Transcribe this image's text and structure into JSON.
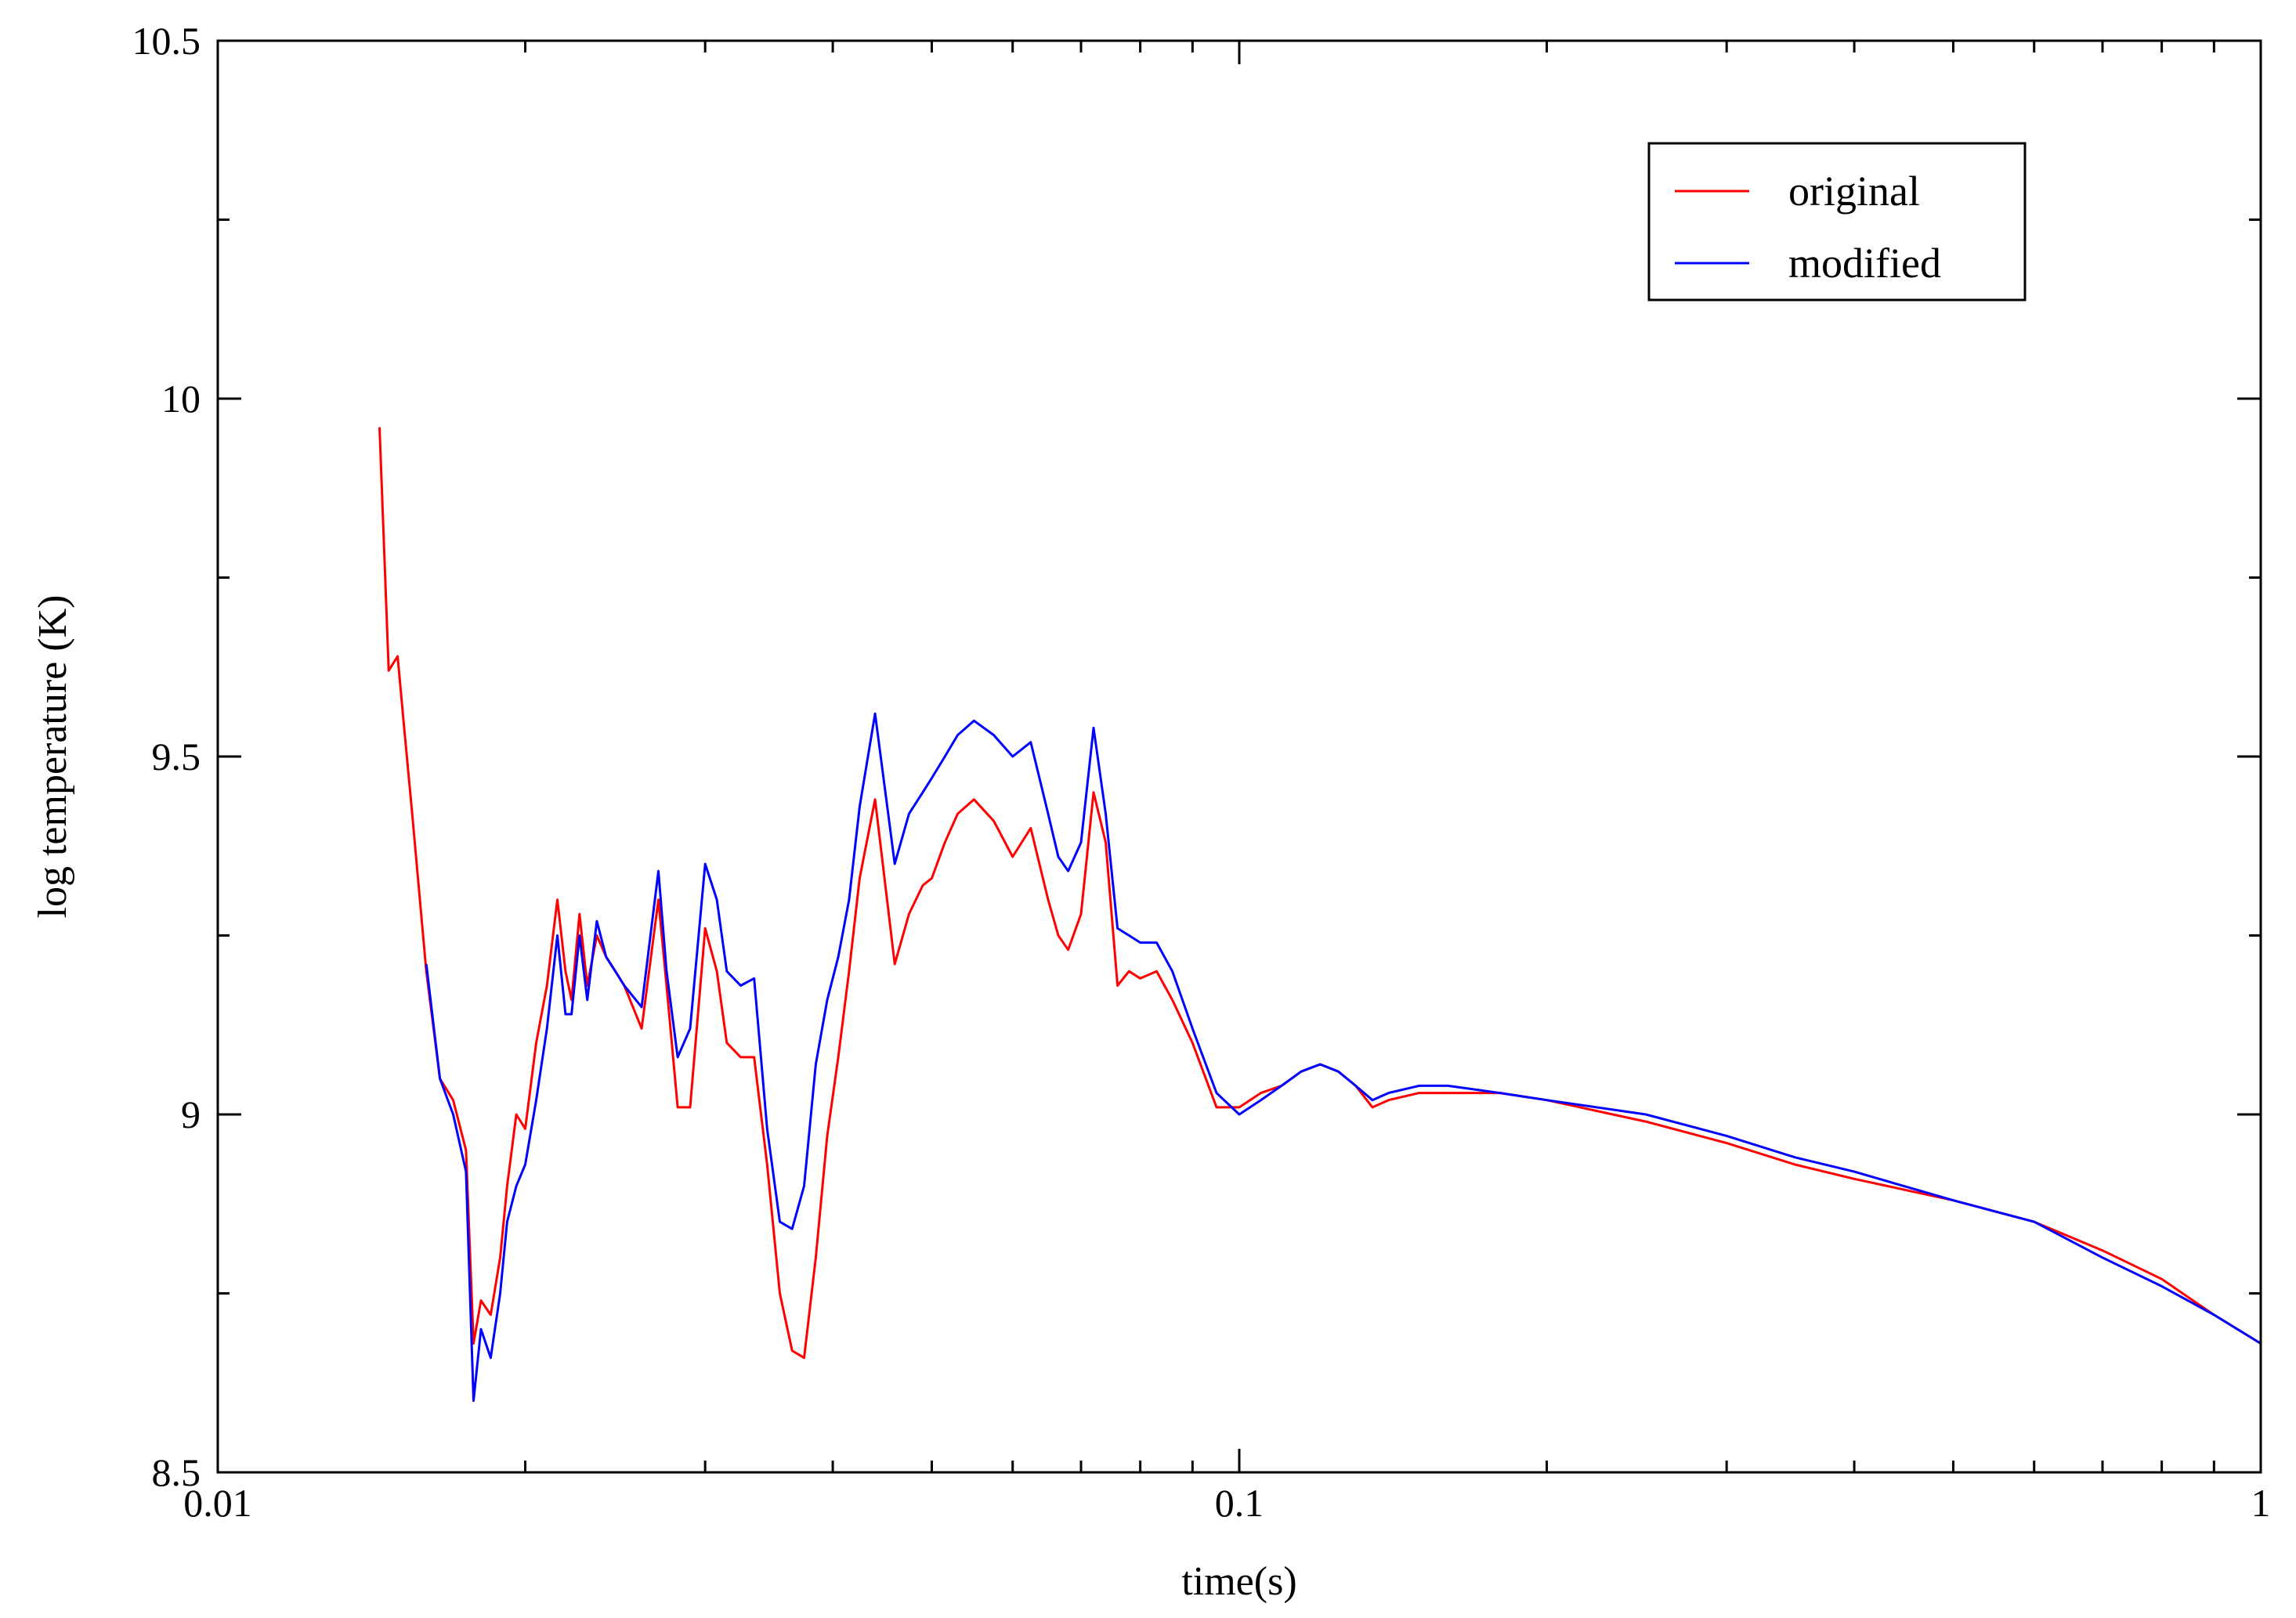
{
  "chart_data": {
    "type": "line",
    "title": "",
    "xlabel": "time(s)",
    "ylabel": "log temperature (K)",
    "x_scale": "log",
    "xlim": [
      0.01,
      1
    ],
    "ylim": [
      8.5,
      10.5
    ],
    "x_ticks": [
      {
        "value": 0.01,
        "label": "0.01"
      },
      {
        "value": 0.1,
        "label": "0.1"
      },
      {
        "value": 1,
        "label": "1"
      }
    ],
    "y_ticks": [
      {
        "value": 8.5,
        "label": "8.5"
      },
      {
        "value": 9,
        "label": "9"
      },
      {
        "value": 9.5,
        "label": "9.5"
      },
      {
        "value": 10,
        "label": "10"
      },
      {
        "value": 10.5,
        "label": "10.5"
      }
    ],
    "grid": false,
    "legend_position": "top-right",
    "series": [
      {
        "name": "original",
        "color": "#ff0000",
        "x": [
          0.0144,
          0.0147,
          0.015,
          0.0152,
          0.0155,
          0.016,
          0.0165,
          0.017,
          0.0175,
          0.0178,
          0.0181,
          0.0185,
          0.0189,
          0.0192,
          0.0196,
          0.02,
          0.0205,
          0.021,
          0.0215,
          0.0219,
          0.0222,
          0.0226,
          0.023,
          0.0235,
          0.024,
          0.0245,
          0.025,
          0.026,
          0.027,
          0.0275,
          0.0282,
          0.029,
          0.03,
          0.0308,
          0.0315,
          0.0325,
          0.0335,
          0.0345,
          0.0355,
          0.0365,
          0.0375,
          0.0385,
          0.0395,
          0.0405,
          0.0415,
          0.0425,
          0.044,
          0.046,
          0.0475,
          0.049,
          0.05,
          0.0515,
          0.053,
          0.055,
          0.0575,
          0.06,
          0.0625,
          0.065,
          0.0665,
          0.068,
          0.07,
          0.072,
          0.074,
          0.076,
          0.078,
          0.08,
          0.083,
          0.086,
          0.09,
          0.095,
          0.1,
          0.105,
          0.11,
          0.115,
          0.12,
          0.125,
          0.13,
          0.135,
          0.14,
          0.15,
          0.16,
          0.18,
          0.2,
          0.25,
          0.3,
          0.35,
          0.4,
          0.5,
          0.6,
          0.7,
          0.8,
          0.9,
          1.0
        ],
        "y": [
          9.96,
          9.62,
          9.64,
          9.55,
          9.42,
          9.2,
          9.05,
          9.02,
          8.95,
          8.68,
          8.74,
          8.72,
          8.8,
          8.9,
          9.0,
          8.98,
          9.1,
          9.18,
          9.3,
          9.2,
          9.16,
          9.28,
          9.18,
          9.25,
          9.22,
          9.2,
          9.18,
          9.12,
          9.3,
          9.18,
          9.01,
          9.01,
          9.26,
          9.2,
          9.1,
          9.08,
          9.08,
          8.93,
          8.75,
          8.67,
          8.66,
          8.8,
          8.97,
          9.08,
          9.2,
          9.33,
          9.44,
          9.21,
          9.28,
          9.32,
          9.33,
          9.38,
          9.42,
          9.44,
          9.41,
          9.36,
          9.4,
          9.3,
          9.25,
          9.23,
          9.28,
          9.45,
          9.38,
          9.18,
          9.2,
          9.19,
          9.2,
          9.16,
          9.1,
          9.01,
          9.01,
          9.03,
          9.04,
          9.06,
          9.07,
          9.06,
          9.04,
          9.01,
          9.02,
          9.03,
          9.03,
          9.03,
          9.02,
          8.99,
          8.96,
          8.93,
          8.91,
          8.88,
          8.85,
          8.81,
          8.77,
          8.72,
          8.68
        ]
      },
      {
        "name": "modified",
        "color": "#0000ff",
        "x": [
          0.016,
          0.0165,
          0.017,
          0.0175,
          0.0178,
          0.0181,
          0.0185,
          0.0189,
          0.0192,
          0.0196,
          0.02,
          0.0205,
          0.021,
          0.0215,
          0.0219,
          0.0222,
          0.0226,
          0.023,
          0.0235,
          0.024,
          0.0245,
          0.025,
          0.026,
          0.027,
          0.0275,
          0.0282,
          0.029,
          0.03,
          0.0308,
          0.0315,
          0.0325,
          0.0335,
          0.0345,
          0.0355,
          0.0365,
          0.0375,
          0.0385,
          0.0395,
          0.0405,
          0.0415,
          0.0425,
          0.044,
          0.046,
          0.0475,
          0.049,
          0.05,
          0.0515,
          0.053,
          0.055,
          0.0575,
          0.06,
          0.0625,
          0.065,
          0.0665,
          0.068,
          0.07,
          0.072,
          0.074,
          0.076,
          0.078,
          0.08,
          0.083,
          0.086,
          0.09,
          0.095,
          0.1,
          0.105,
          0.11,
          0.115,
          0.12,
          0.125,
          0.13,
          0.135,
          0.14,
          0.15,
          0.16,
          0.18,
          0.2,
          0.25,
          0.3,
          0.35,
          0.4,
          0.5,
          0.6,
          0.7,
          0.8,
          0.9,
          1.0
        ],
        "y": [
          9.21,
          9.05,
          9.0,
          8.92,
          8.6,
          8.7,
          8.66,
          8.75,
          8.85,
          8.9,
          8.93,
          9.02,
          9.12,
          9.25,
          9.14,
          9.14,
          9.25,
          9.16,
          9.27,
          9.22,
          9.2,
          9.18,
          9.15,
          9.34,
          9.2,
          9.08,
          9.12,
          9.35,
          9.3,
          9.2,
          9.18,
          9.19,
          8.98,
          8.85,
          8.84,
          8.9,
          9.07,
          9.16,
          9.22,
          9.3,
          9.43,
          9.56,
          9.35,
          9.42,
          9.45,
          9.47,
          9.5,
          9.53,
          9.55,
          9.53,
          9.5,
          9.52,
          9.42,
          9.36,
          9.34,
          9.38,
          9.54,
          9.42,
          9.26,
          9.25,
          9.24,
          9.24,
          9.2,
          9.12,
          9.03,
          9.0,
          9.02,
          9.04,
          9.06,
          9.07,
          9.06,
          9.04,
          9.02,
          9.03,
          9.04,
          9.04,
          9.03,
          9.02,
          9.0,
          8.97,
          8.94,
          8.92,
          8.88,
          8.85,
          8.8,
          8.76,
          8.72,
          8.68
        ]
      }
    ]
  }
}
